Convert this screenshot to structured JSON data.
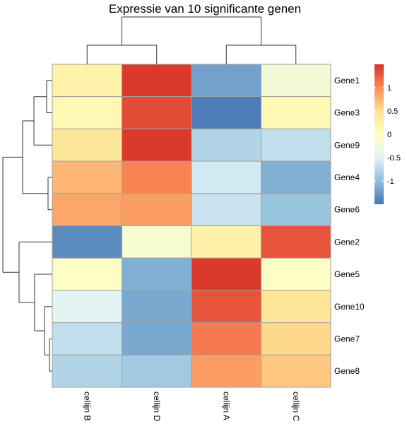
{
  "chart_data": {
    "type": "heatmap",
    "title": "Expressie van 10 significante genen",
    "columns": [
      "cellijn B",
      "cellijn D",
      "cellijn A",
      "cellijn C"
    ],
    "rows": [
      "Gene1",
      "Gene3",
      "Gene9",
      "Gene4",
      "Gene6",
      "Gene2",
      "Gene5",
      "Gene10",
      "Gene7",
      "Gene8"
    ],
    "values": [
      [
        0.2,
        1.45,
        -1.2,
        -0.2
      ],
      [
        0.12,
        1.35,
        -1.45,
        0.1
      ],
      [
        0.4,
        1.45,
        -0.8,
        -0.7
      ],
      [
        0.75,
        1.05,
        -0.6,
        -1.1
      ],
      [
        0.85,
        0.9,
        -0.65,
        -0.95
      ],
      [
        -1.35,
        -0.15,
        0.25,
        1.3
      ],
      [
        -0.05,
        -1.1,
        1.45,
        -0.05
      ],
      [
        -0.45,
        -1.15,
        1.3,
        0.4
      ],
      [
        -0.7,
        -1.15,
        1.1,
        0.55
      ],
      [
        -0.8,
        -0.9,
        0.9,
        0.65
      ]
    ],
    "color_scale": [
      "#4575B4",
      "#91BFDB",
      "#E0F3F8",
      "#FFFFBF",
      "#FEE090",
      "#FC8D59",
      "#D73027"
    ],
    "color_range": [
      -1.5,
      1.5
    ],
    "legend_ticks": [
      1,
      0.5,
      0,
      -0.5,
      -1
    ],
    "legend_position": "top-right",
    "cell_border_color": "#A0A0A0",
    "row_dendrogram": true,
    "column_dendrogram": true
  }
}
